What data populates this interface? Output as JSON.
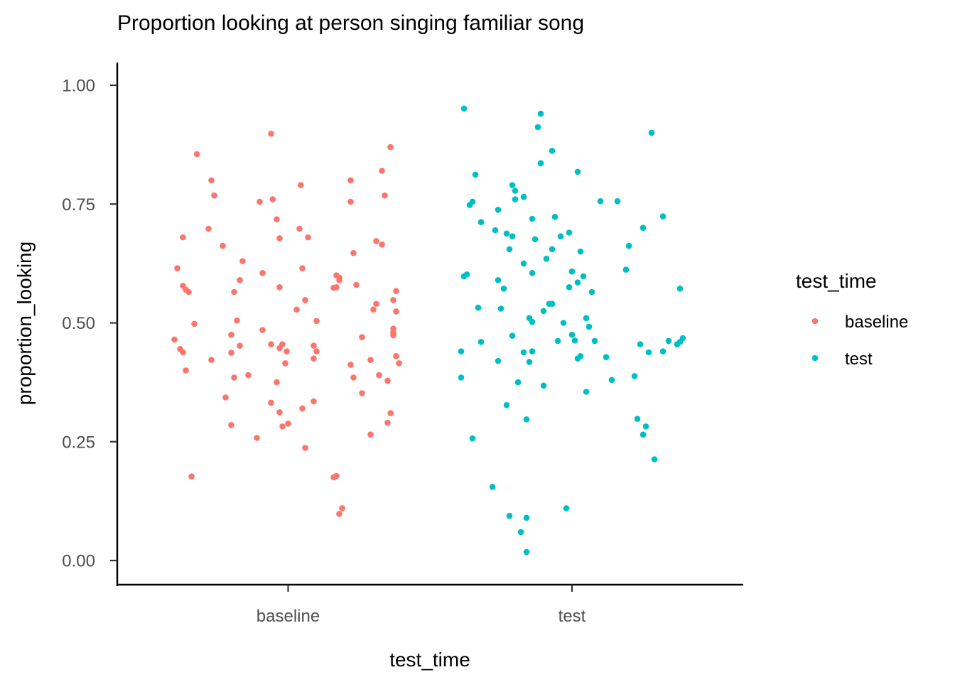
{
  "chart_data": {
    "type": "scatter",
    "title": "Proportion looking at person singing familiar song",
    "xlabel": "test_time",
    "ylabel": "proportion_looking",
    "categories": [
      "baseline",
      "test"
    ],
    "y_ticks": [
      "0.00",
      "0.25",
      "0.50",
      "0.75",
      "1.00"
    ],
    "ylim": [
      -0.05,
      1.05
    ],
    "grid": false,
    "legend": {
      "title": "test_time",
      "placement": "right",
      "entries": [
        "baseline",
        "test"
      ]
    },
    "series": [
      {
        "name": "baseline",
        "color": "#F8766D",
        "jitter": [
          -0.39,
          -0.4,
          -0.38,
          -0.37,
          -0.37,
          -0.36,
          -0.36,
          -0.35,
          -0.34,
          -0.33,
          -0.28,
          -0.27,
          -0.27,
          -0.26,
          -0.23,
          -0.22,
          -0.2,
          -0.2,
          -0.2,
          -0.19,
          -0.19,
          -0.18,
          -0.17,
          -0.17,
          -0.16,
          -0.14,
          -0.11,
          -0.1,
          -0.09,
          -0.09,
          -0.06,
          -0.06,
          -0.06,
          -0.04,
          -0.04,
          -0.03,
          -0.03,
          -0.03,
          -0.03,
          -0.02,
          -0.02,
          -0.01,
          0.0,
          0.03,
          0.04,
          0.05,
          0.05,
          0.06,
          0.06,
          0.07,
          0.09,
          0.09,
          0.09,
          0.1,
          0.1,
          0.16,
          0.16,
          0.17,
          0.17,
          0.17,
          0.18,
          0.18,
          0.18,
          0.19,
          0.22,
          0.22,
          0.22,
          0.23,
          0.23,
          0.24,
          0.26,
          0.26,
          0.29,
          0.29,
          0.3,
          0.31,
          0.31,
          0.32,
          0.33,
          0.33,
          0.34,
          0.35,
          0.35,
          0.36,
          0.37,
          0.37,
          0.37,
          0.37,
          0.38,
          0.38,
          0.38,
          0.39
        ],
        "y": [
          0.615,
          0.465,
          0.445,
          0.438,
          0.578,
          0.4,
          0.57,
          0.565,
          0.177,
          0.498,
          0.698,
          0.422,
          0.8,
          0.768,
          0.662,
          0.343,
          0.475,
          0.437,
          0.285,
          0.385,
          0.565,
          0.505,
          0.59,
          0.452,
          0.63,
          0.39,
          0.258,
          0.755,
          0.605,
          0.485,
          0.455,
          0.332,
          0.898,
          0.375,
          0.718,
          0.678,
          0.312,
          0.575,
          0.447,
          0.455,
          0.282,
          0.415,
          0.288,
          0.528,
          0.698,
          0.32,
          0.615,
          0.237,
          0.548,
          0.68,
          0.335,
          0.425,
          0.452,
          0.44,
          0.504,
          0.175,
          0.574,
          0.178,
          0.575,
          0.6,
          0.595,
          0.59,
          0.098,
          0.11,
          0.8,
          0.755,
          0.412,
          0.647,
          0.385,
          0.58,
          0.47,
          0.352,
          0.265,
          0.422,
          0.528,
          0.54,
          0.672,
          0.39,
          0.665,
          0.82,
          0.768,
          0.29,
          0.378,
          0.87,
          0.474,
          0.548,
          0.48,
          0.488,
          0.567,
          0.524,
          0.43,
          0.415
        ],
        "y_more": [
          0.855,
          0.79,
          0.68,
          0.44,
          0.31,
          0.76
        ]
      },
      {
        "name": "test",
        "color": "#00BFC4",
        "jitter": [
          -0.39,
          -0.39,
          -0.38,
          -0.38,
          -0.37,
          -0.36,
          -0.35,
          -0.35,
          -0.34,
          -0.33,
          -0.32,
          -0.32,
          -0.28,
          -0.27,
          -0.26,
          -0.26,
          -0.26,
          -0.25,
          -0.24,
          -0.23,
          -0.23,
          -0.22,
          -0.22,
          -0.21,
          -0.21,
          -0.21,
          -0.2,
          -0.2,
          -0.19,
          -0.18,
          -0.17,
          -0.17,
          -0.17,
          -0.16,
          -0.16,
          -0.16,
          -0.15,
          -0.15,
          -0.14,
          -0.14,
          -0.14,
          -0.14,
          -0.13,
          -0.12,
          -0.11,
          -0.11,
          -0.1,
          -0.1,
          -0.09,
          -0.08,
          -0.07,
          -0.07,
          -0.07,
          -0.06,
          -0.05,
          -0.04,
          -0.03,
          -0.02,
          -0.01,
          -0.01,
          0.0,
          0.0,
          0.01,
          0.02,
          0.02,
          0.02,
          0.03,
          0.03,
          0.04,
          0.05,
          0.05,
          0.06,
          0.07,
          0.08,
          0.1,
          0.12,
          0.14,
          0.16,
          0.19,
          0.2,
          0.22,
          0.23,
          0.24,
          0.25,
          0.25,
          0.26,
          0.27,
          0.28,
          0.29,
          0.32,
          0.32,
          0.34,
          0.37,
          0.38,
          0.38,
          0.39
        ],
        "y": [
          0.44,
          0.385,
          0.951,
          0.598,
          0.602,
          0.748,
          0.755,
          0.257,
          0.812,
          0.532,
          0.712,
          0.46,
          0.155,
          0.695,
          0.59,
          0.738,
          0.42,
          0.53,
          0.572,
          0.688,
          0.327,
          0.094,
          0.655,
          0.473,
          0.682,
          0.79,
          0.76,
          0.778,
          0.375,
          0.06,
          0.438,
          0.625,
          0.765,
          0.297,
          0.018,
          0.09,
          0.418,
          0.51,
          0.44,
          0.719,
          0.502,
          0.605,
          0.676,
          0.912,
          0.836,
          0.94,
          0.368,
          0.525,
          0.635,
          0.54,
          0.862,
          0.655,
          0.54,
          0.723,
          0.462,
          0.682,
          0.5,
          0.11,
          0.69,
          0.575,
          0.475,
          0.608,
          0.463,
          0.425,
          0.818,
          0.585,
          0.65,
          0.43,
          0.598,
          0.355,
          0.51,
          0.492,
          0.565,
          0.462,
          0.756,
          0.428,
          0.38,
          0.756,
          0.612,
          0.662,
          0.388,
          0.298,
          0.455,
          0.265,
          0.7,
          0.282,
          0.438,
          0.9,
          0.213,
          0.44,
          0.724,
          0.462,
          0.455,
          0.572,
          0.46,
          0.468
        ]
      }
    ]
  }
}
